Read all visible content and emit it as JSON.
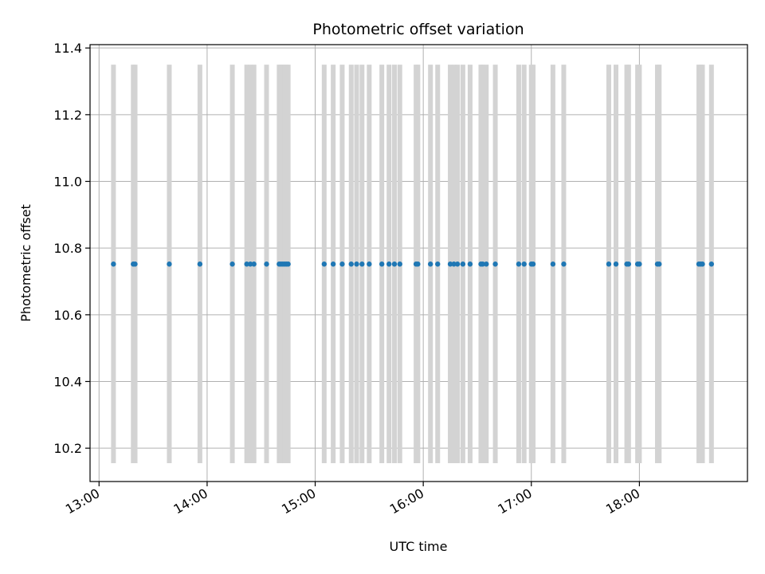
{
  "chart_data": {
    "type": "scatter",
    "title": "Photometric offset variation",
    "xlabel": "UTC time",
    "ylabel": "Photometric offset",
    "x_ticks": [
      "13:00",
      "14:00",
      "15:00",
      "16:00",
      "17:00",
      "18:00"
    ],
    "y_ticks": [
      "10.2",
      "10.4",
      "10.6",
      "10.8",
      "11.0",
      "11.2",
      "11.4"
    ],
    "xlim": [
      "12:55",
      "19:00"
    ],
    "ylim": [
      10.1,
      11.41
    ],
    "grid": true,
    "colors": {
      "points": "#1f77b4",
      "bars": "#d3d3d3",
      "grid": "#b0b0b0"
    },
    "error_bar_range": [
      10.155,
      11.35
    ],
    "series": [
      {
        "x": [
          "13:08",
          "13:19",
          "13:20",
          "13:39",
          "13:56",
          "14:14",
          "14:22",
          "14:24",
          "14:26",
          "14:33",
          "14:40",
          "14:41",
          "14:42",
          "14:43",
          "14:44",
          "14:45",
          "15:05",
          "15:10",
          "15:15",
          "15:20",
          "15:23",
          "15:26",
          "15:30",
          "15:37",
          "15:41",
          "15:44",
          "15:47",
          "15:56",
          "15:57",
          "16:04",
          "16:08",
          "16:15",
          "16:17",
          "16:19",
          "16:22",
          "16:26",
          "16:32",
          "16:33",
          "16:35",
          "16:40",
          "16:53",
          "16:56",
          "17:00",
          "17:01",
          "17:12",
          "17:18",
          "17:43",
          "17:47",
          "17:53",
          "17:54",
          "17:59",
          "18:00",
          "18:10",
          "18:11",
          "18:33",
          "18:34",
          "18:35",
          "18:40"
        ],
        "y": [
          10.752,
          10.752,
          10.752,
          10.752,
          10.752,
          10.752,
          10.752,
          10.752,
          10.752,
          10.752,
          10.752,
          10.752,
          10.752,
          10.752,
          10.752,
          10.752,
          10.752,
          10.752,
          10.752,
          10.752,
          10.752,
          10.752,
          10.752,
          10.752,
          10.752,
          10.752,
          10.752,
          10.752,
          10.752,
          10.752,
          10.752,
          10.752,
          10.752,
          10.752,
          10.752,
          10.752,
          10.752,
          10.752,
          10.752,
          10.752,
          10.752,
          10.752,
          10.752,
          10.752,
          10.752,
          10.752,
          10.752,
          10.752,
          10.752,
          10.752,
          10.752,
          10.752,
          10.752,
          10.752,
          10.752,
          10.752,
          10.752,
          10.752
        ]
      }
    ]
  }
}
